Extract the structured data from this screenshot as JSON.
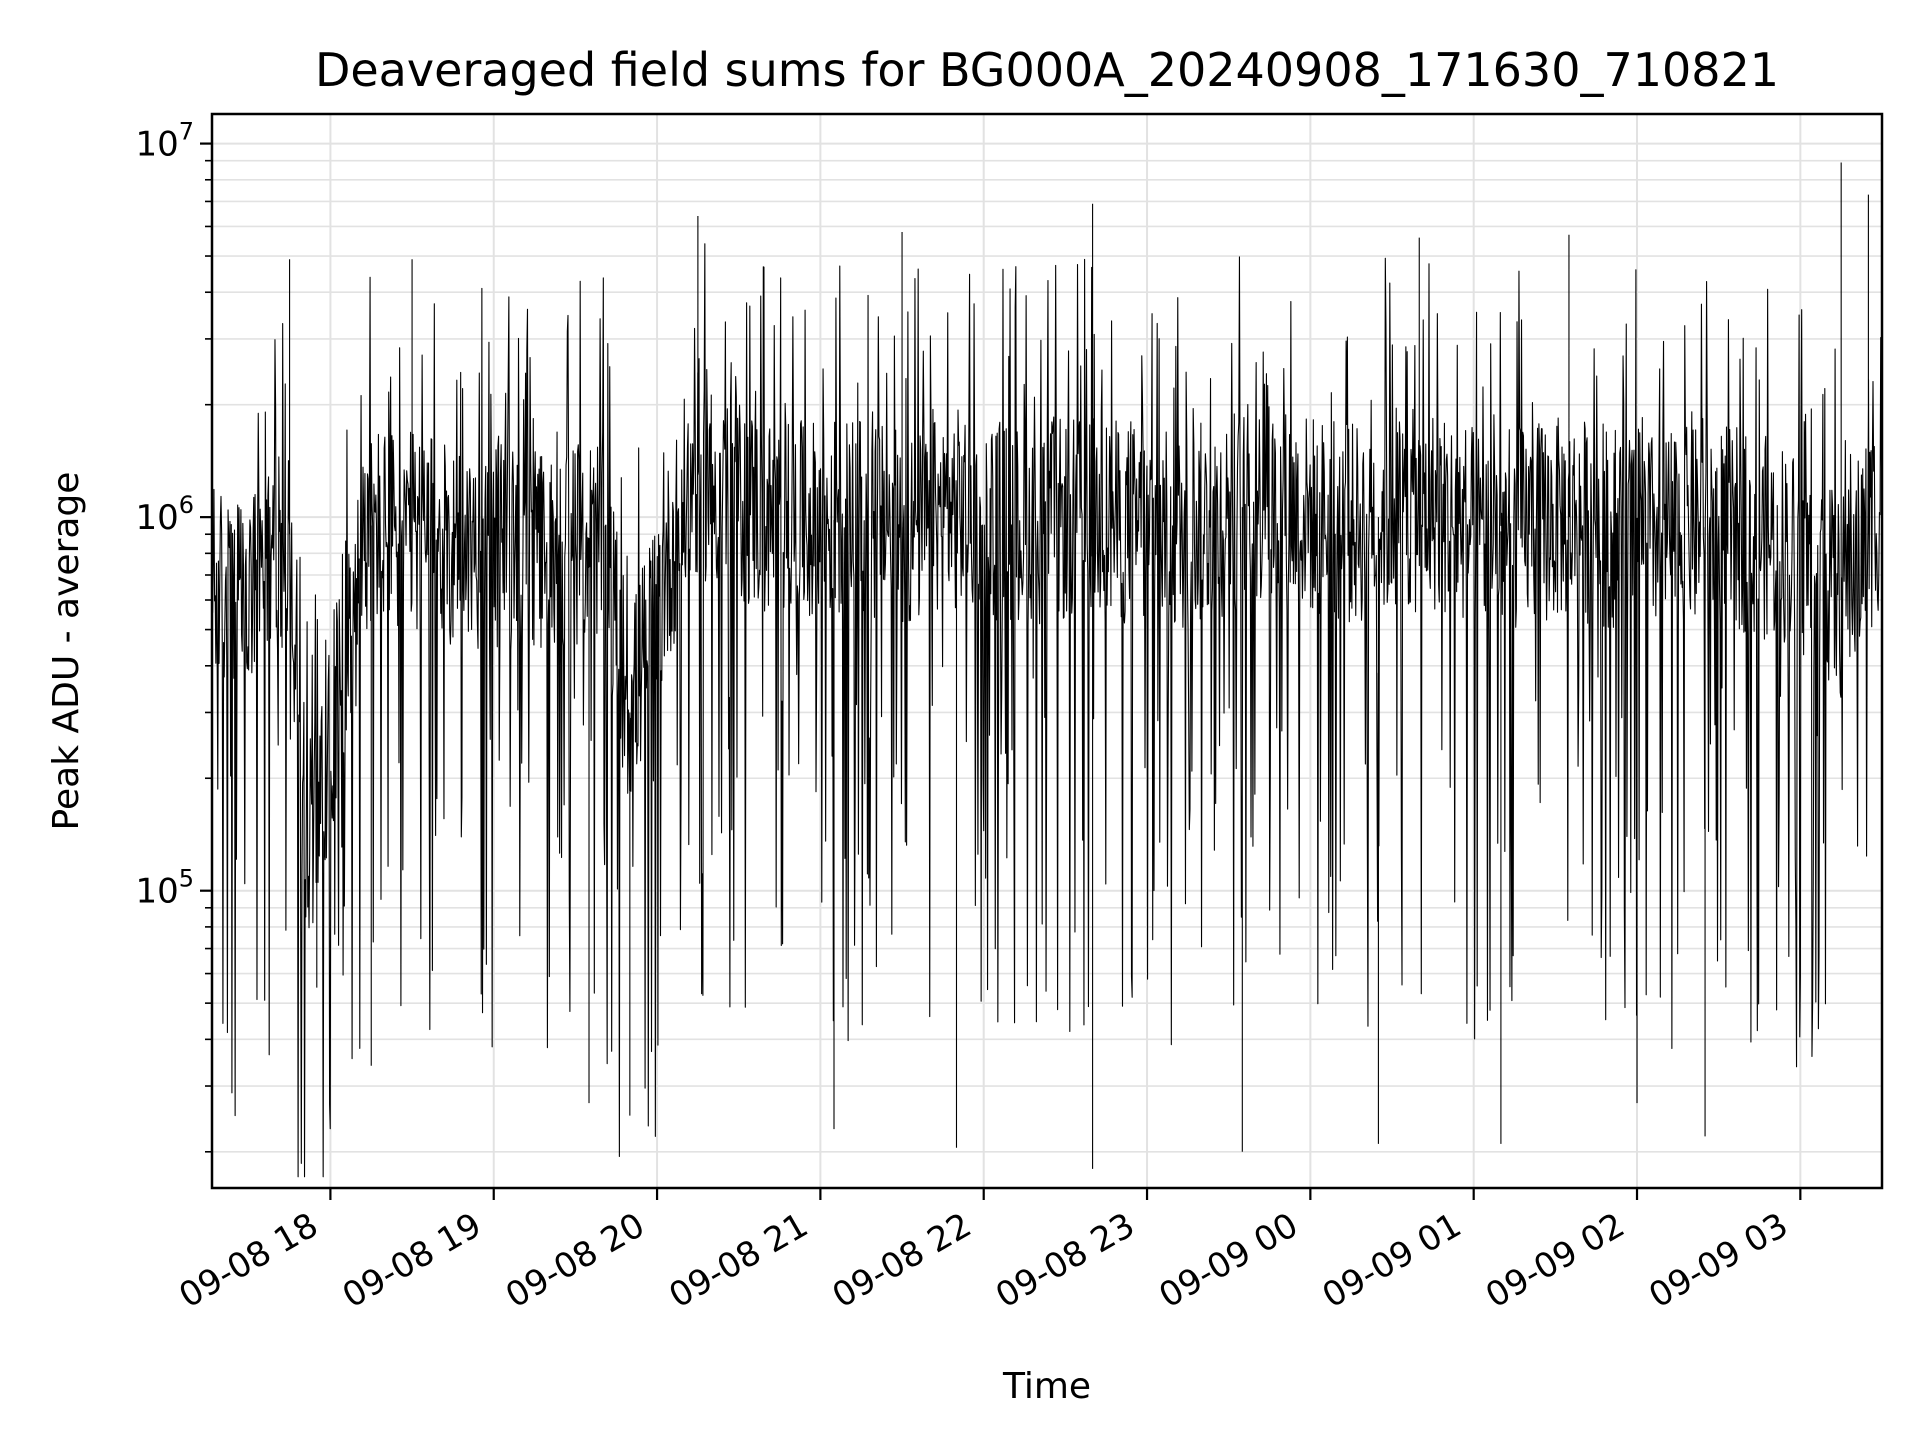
{
  "chart_data": {
    "type": "line",
    "title": "Deaveraged field sums for BG000A_20240908_171630_710821",
    "xlabel": "Time",
    "ylabel": "Peak ADU - average",
    "y_scale": "log",
    "grid": true,
    "legend": "none",
    "x_range": [
      "2024-09-08 17:16:30",
      "2024-09-09 03:30:00"
    ],
    "ylim": [
      16000,
      12000000
    ],
    "x_ticks": [
      {
        "value": "2024-09-08 18:00",
        "label": "09-08 18"
      },
      {
        "value": "2024-09-08 19:00",
        "label": "09-08 19"
      },
      {
        "value": "2024-09-08 20:00",
        "label": "09-08 20"
      },
      {
        "value": "2024-09-08 21:00",
        "label": "09-08 21"
      },
      {
        "value": "2024-09-08 22:00",
        "label": "09-08 22"
      },
      {
        "value": "2024-09-08 23:00",
        "label": "09-08 23"
      },
      {
        "value": "2024-09-09 00:00",
        "label": "09-09 00"
      },
      {
        "value": "2024-09-09 01:00",
        "label": "09-09 01"
      },
      {
        "value": "2024-09-09 02:00",
        "label": "09-09 02"
      },
      {
        "value": "2024-09-09 03:00",
        "label": "09-09 03"
      }
    ],
    "y_ticks": [
      {
        "value": 100000,
        "base": "10",
        "exp": "5"
      },
      {
        "value": 1000000,
        "base": "10",
        "exp": "6"
      },
      {
        "value": 10000000,
        "base": "10",
        "exp": "7"
      }
    ],
    "series": [
      {
        "color": "#000000",
        "x": [
          "2024-09-08 17:16:30",
          "2024-09-08 17:30",
          "2024-09-08 17:45",
          "2024-09-08 17:50",
          "2024-09-08 18:15",
          "2024-09-08 18:45",
          "2024-09-08 19:15",
          "2024-09-08 19:40",
          "2024-09-08 19:50",
          "2024-09-08 20:10",
          "2024-09-08 20:15",
          "2024-09-08 20:45",
          "2024-09-08 21:15",
          "2024-09-08 21:30",
          "2024-09-08 21:50",
          "2024-09-08 22:15",
          "2024-09-08 22:40",
          "2024-09-08 23:10",
          "2024-09-08 23:40",
          "2024-09-09 00:15",
          "2024-09-09 00:25",
          "2024-09-09 00:45",
          "2024-09-09 01:05",
          "2024-09-09 01:35",
          "2024-09-09 02:05",
          "2024-09-09 02:30",
          "2024-09-09 02:55",
          "2024-09-09 03:15",
          "2024-09-09 03:30"
        ],
        "y": [
          650000,
          580000,
          900000,
          110000,
          950000,
          850000,
          800000,
          900000,
          300000,
          1100000,
          1300000,
          950000,
          1000000,
          900000,
          1050000,
          950000,
          1000000,
          900000,
          1100000,
          950000,
          1000000,
          1050000,
          900000,
          1000000,
          900000,
          950000,
          850000,
          600000,
          1100000
        ],
        "peaks_high": [
          [
            "2024-09-08 17:45",
            4900000
          ],
          [
            "2024-09-08 18:30",
            4900000
          ],
          [
            "2024-09-08 20:15",
            6400000
          ],
          [
            "2024-09-08 21:30",
            5800000
          ],
          [
            "2024-09-08 22:40",
            6900000
          ],
          [
            "2024-09-09 00:40",
            5600000
          ],
          [
            "2024-09-09 01:35",
            5700000
          ],
          [
            "2024-09-09 03:15",
            8900000
          ],
          [
            "2024-09-09 03:25",
            7300000
          ]
        ],
        "dips_low": [
          [
            "2024-09-08 17:55",
            55000
          ],
          [
            "2024-09-08 18:15",
            34000
          ],
          [
            "2024-09-08 19:35",
            27000
          ],
          [
            "2024-09-08 19:50",
            25000
          ],
          [
            "2024-09-08 21:05",
            23000
          ],
          [
            "2024-09-08 21:50",
            20500
          ],
          [
            "2024-09-08 22:40",
            18000
          ],
          [
            "2024-09-08 23:35",
            20000
          ],
          [
            "2024-09-09 00:25",
            21000
          ],
          [
            "2024-09-09 01:10",
            21000
          ],
          [
            "2024-09-09 02:00",
            27000
          ],
          [
            "2024-09-09 02:25",
            22000
          ]
        ]
      }
    ]
  }
}
